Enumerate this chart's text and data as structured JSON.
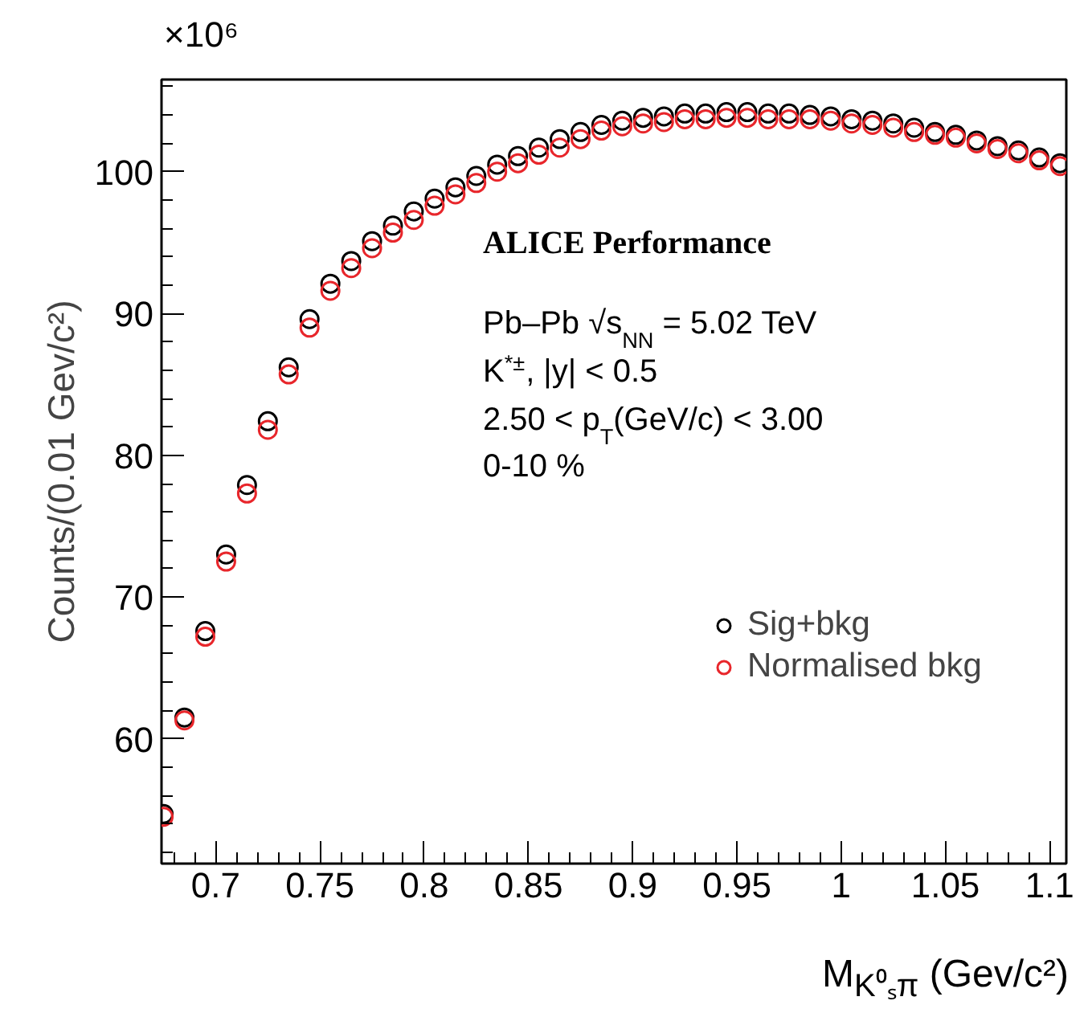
{
  "chart_data": {
    "type": "scatter",
    "xlabel": "M$_{K⁰ₛπ}$ (Gev/c²)",
    "ylabel": "Counts/(0.01 Gev/c²)",
    "annotations": [
      "×10⁶",
      "ALICE Performance",
      "Pb–Pb √s$_{NN}$ = 5.02 TeV",
      "K$^{*±}$, |y| < 0.5",
      "2.50 < p$_{T}$(GeV/c) < 3.00",
      "0-10 %"
    ],
    "x": [
      0.675,
      0.685,
      0.695,
      0.705,
      0.715,
      0.725,
      0.735,
      0.745,
      0.755,
      0.765,
      0.775,
      0.785,
      0.795,
      0.805,
      0.815,
      0.825,
      0.835,
      0.845,
      0.855,
      0.865,
      0.875,
      0.885,
      0.895,
      0.905,
      0.915,
      0.925,
      0.935,
      0.945,
      0.955,
      0.965,
      0.975,
      0.985,
      0.995,
      1.005,
      1.015,
      1.025,
      1.035,
      1.045,
      1.055,
      1.065,
      1.075,
      1.085,
      1.095,
      1.105
    ],
    "series": [
      {
        "name": "Sig+bkg",
        "color": "#000000",
        "values": [
          54.7,
          61.5,
          67.6,
          73.0,
          77.9,
          82.4,
          86.2,
          89.6,
          92.1,
          93.7,
          95.1,
          96.2,
          97.2,
          98.1,
          98.9,
          99.7,
          100.5,
          101.1,
          101.7,
          102.3,
          102.8,
          103.3,
          103.6,
          103.8,
          103.9,
          104.1,
          104.1,
          104.2,
          104.2,
          104.1,
          104.1,
          104.0,
          103.9,
          103.7,
          103.6,
          103.4,
          103.1,
          102.8,
          102.6,
          102.2,
          101.8,
          101.5,
          101.0,
          100.6
        ]
      },
      {
        "name": "Normalised bkg",
        "color": "#e8262b",
        "values": [
          54.5,
          61.3,
          67.2,
          72.5,
          77.3,
          81.8,
          85.7,
          89.0,
          91.6,
          93.2,
          94.6,
          95.7,
          96.6,
          97.6,
          98.4,
          99.2,
          100.0,
          100.6,
          101.2,
          101.7,
          102.3,
          102.9,
          103.2,
          103.4,
          103.5,
          103.7,
          103.7,
          103.8,
          103.8,
          103.7,
          103.7,
          103.7,
          103.6,
          103.4,
          103.3,
          103.1,
          102.8,
          102.6,
          102.4,
          102.0,
          101.6,
          101.3,
          100.8,
          100.4
        ]
      }
    ],
    "xlim": [
      0.674,
      1.108
    ],
    "ylim": [
      51.2,
      106.5
    ],
    "xticks": [
      0.7,
      0.75,
      0.8,
      0.85,
      0.9,
      0.95,
      1,
      1.05,
      1.1
    ],
    "yticks": [
      60,
      70,
      80,
      90,
      100
    ],
    "marker": "circle",
    "legend": "right",
    "grid": false
  }
}
